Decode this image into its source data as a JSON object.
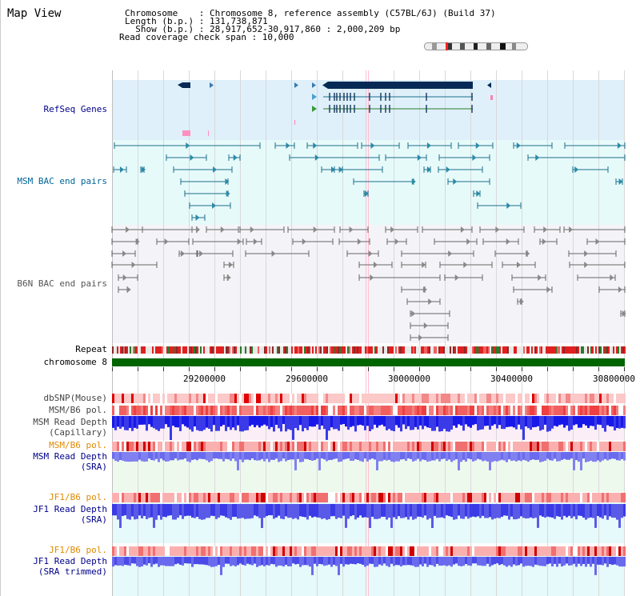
{
  "header": {
    "title": "Map View",
    "info_lines": [
      "Chromosome    : Chromosome 8, reference assembly (C57BL/6J) (Build 37)",
      "Length (b.p.) : 131,738,871",
      "  Show (b.p.) : 28,917,652-30,917,860 : 2,000,209 bp",
      "Read coverage check span : 10,000"
    ]
  },
  "tracks": {
    "refseq": "RefSeq Genes",
    "msm_bac": "MSM BAC end pairs",
    "b6n_bac": "B6N BAC end pairs",
    "repeat": "Repeat",
    "chromosome": "chromosome 8",
    "dbsnp": "dbSNP(Mouse)",
    "msm_b6_pol_1": "MSM/B6 pol.",
    "msm_read_depth_cap_1": "MSM Read Depth",
    "msm_read_depth_cap_2": "(Capillary)",
    "msm_b6_pol_2": "MSM/B6 pol.",
    "msm_read_depth_sra_1": "MSM Read Depth",
    "msm_read_depth_sra_2": "(SRA)",
    "jf1_b6_pol_1": "JF1/B6 pol.",
    "jf1_read_depth_sra_1": "JF1 Read Depth",
    "jf1_read_depth_sra_2": "(SRA)",
    "jf1_b6_pol_2": "JF1/B6 pol.",
    "jf1_read_depth_trim_1": "JF1 Read Depth",
    "jf1_read_depth_trim_2": "(SRA trimmed)"
  },
  "axis": {
    "ticks": [
      "29200000",
      "29600000",
      "30000000",
      "30400000",
      "30800000"
    ]
  },
  "colors": {
    "refseq_bg": "#dff0fa",
    "msm_bg": "#e6fafa",
    "b6n_bg": "#f4f4f8",
    "label_navy": "#00008b",
    "label_orange": "#e08a00",
    "msm_label": "#006699",
    "gene_navy": "#062a55",
    "bac_teal": "#1e6e8a",
    "bac_grey": "#666666",
    "chrom_green": "#006400",
    "depth_blue": "#2020e0",
    "depth_light": "#7070ee"
  }
}
